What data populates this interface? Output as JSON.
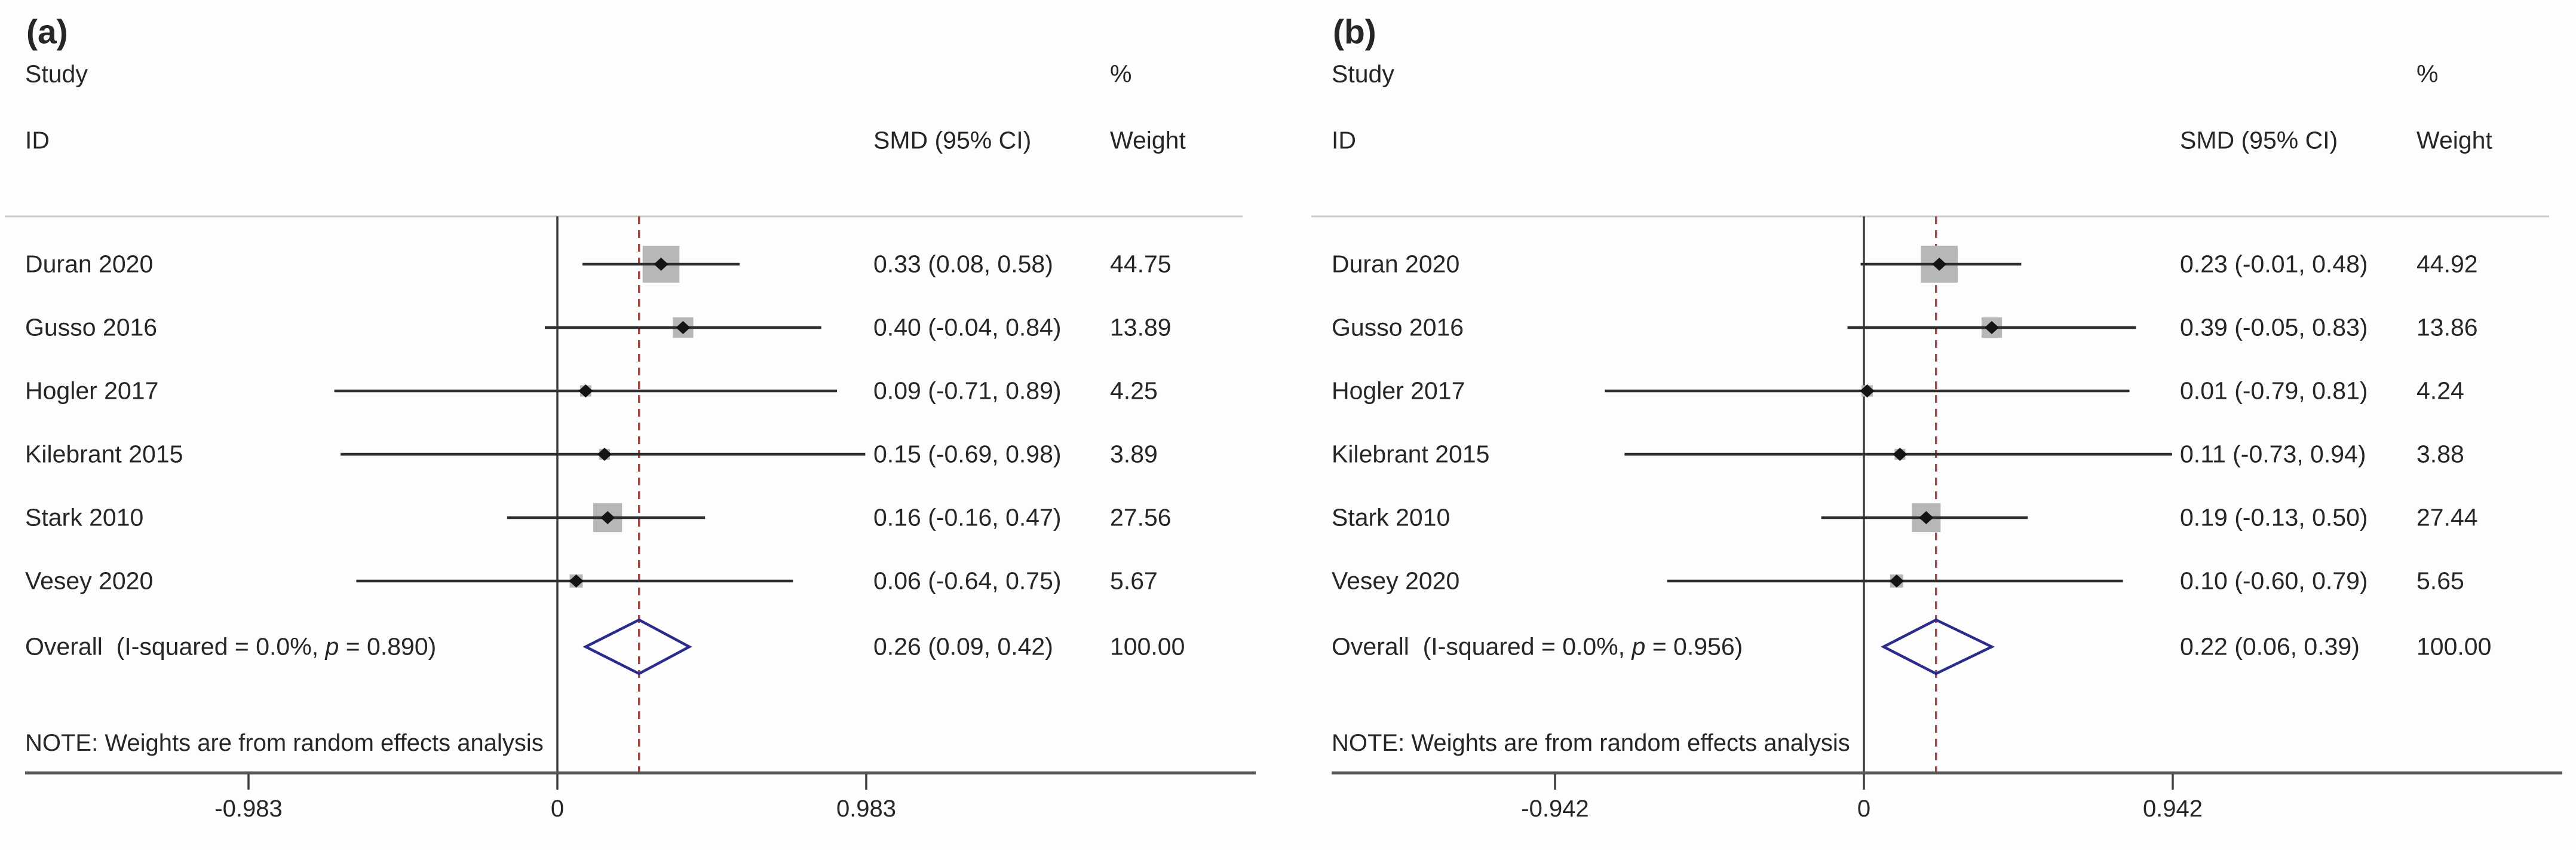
{
  "colors": {
    "background": "#fdfdfd",
    "text": "#262626",
    "ci_line": "#2e2e2e",
    "weight_square": "#b7b7b7",
    "point_marker": "#141414",
    "overall_diamond_outline": "#2b2b8c",
    "overall_effect_dashed_line": "#9e4a4a",
    "zero_line": "#3d3d3d",
    "axis_line": "#585858",
    "header_separator": "#cccccc"
  },
  "chart_data": [
    {
      "type": "forest",
      "panel_label": "(a)",
      "columns": {
        "study": "Study",
        "id": "ID",
        "smd": "SMD (95% CI)",
        "percent": "%",
        "weight": "Weight"
      },
      "studies": [
        {
          "id": "Duran 2020",
          "smd": 0.33,
          "ci": [
            0.08,
            0.58
          ],
          "label": "0.33 (0.08, 0.58)",
          "weight": 44.75,
          "weight_label": "44.75"
        },
        {
          "id": "Gusso 2016",
          "smd": 0.4,
          "ci": [
            -0.04,
            0.84
          ],
          "label": "0.40 (-0.04, 0.84)",
          "weight": 13.89,
          "weight_label": "13.89"
        },
        {
          "id": "Hogler 2017",
          "smd": 0.09,
          "ci": [
            -0.71,
            0.89
          ],
          "label": "0.09 (-0.71, 0.89)",
          "weight": 4.25,
          "weight_label": "4.25"
        },
        {
          "id": "Kilebrant 2015",
          "smd": 0.15,
          "ci": [
            -0.69,
            0.98
          ],
          "label": "0.15 (-0.69, 0.98)",
          "weight": 3.89,
          "weight_label": "3.89"
        },
        {
          "id": "Stark 2010",
          "smd": 0.16,
          "ci": [
            -0.16,
            0.47
          ],
          "label": "0.16 (-0.16, 0.47)",
          "weight": 27.56,
          "weight_label": "27.56"
        },
        {
          "id": "Vesey 2020",
          "smd": 0.06,
          "ci": [
            -0.64,
            0.75
          ],
          "label": "0.06 (-0.64, 0.75)",
          "weight": 5.67,
          "weight_label": "5.67"
        }
      ],
      "overall": {
        "id_parts": [
          "Overall  (I-squared = 0.0%, ",
          "p",
          " = 0.890)"
        ],
        "smd": 0.26,
        "ci": [
          0.09,
          0.42
        ],
        "label": "0.26 (0.09, 0.42)",
        "weight": 100.0,
        "weight_label": "100.00"
      },
      "note": "NOTE: Weights are from random effects analysis",
      "x_axis": {
        "ticks": [
          -0.983,
          0,
          0.983
        ],
        "tick_labels": [
          "-0.983",
          "0",
          "0.983"
        ]
      }
    },
    {
      "type": "forest",
      "panel_label": "(b)",
      "columns": {
        "study": "Study",
        "id": "ID",
        "smd": "SMD (95% CI)",
        "percent": "%",
        "weight": "Weight"
      },
      "studies": [
        {
          "id": "Duran 2020",
          "smd": 0.23,
          "ci": [
            -0.01,
            0.48
          ],
          "label": "0.23 (-0.01, 0.48)",
          "weight": 44.92,
          "weight_label": "44.92"
        },
        {
          "id": "Gusso 2016",
          "smd": 0.39,
          "ci": [
            -0.05,
            0.83
          ],
          "label": "0.39 (-0.05, 0.83)",
          "weight": 13.86,
          "weight_label": "13.86"
        },
        {
          "id": "Hogler 2017",
          "smd": 0.01,
          "ci": [
            -0.79,
            0.81
          ],
          "label": "0.01 (-0.79, 0.81)",
          "weight": 4.24,
          "weight_label": "4.24"
        },
        {
          "id": "Kilebrant 2015",
          "smd": 0.11,
          "ci": [
            -0.73,
            0.94
          ],
          "label": "0.11 (-0.73, 0.94)",
          "weight": 3.88,
          "weight_label": "3.88"
        },
        {
          "id": "Stark 2010",
          "smd": 0.19,
          "ci": [
            -0.13,
            0.5
          ],
          "label": "0.19 (-0.13, 0.50)",
          "weight": 27.44,
          "weight_label": "27.44"
        },
        {
          "id": "Vesey 2020",
          "smd": 0.1,
          "ci": [
            -0.6,
            0.79
          ],
          "label": "0.10 (-0.60, 0.79)",
          "weight": 5.65,
          "weight_label": "5.65"
        }
      ],
      "overall": {
        "id_parts": [
          "Overall  (I-squared = 0.0%, ",
          "p",
          " = 0.956)"
        ],
        "smd": 0.22,
        "ci": [
          0.06,
          0.39
        ],
        "label": "0.22 (0.06, 0.39)",
        "weight": 100.0,
        "weight_label": "100.00"
      },
      "note": "NOTE: Weights are from random effects analysis",
      "x_axis": {
        "ticks": [
          -0.942,
          0,
          0.942
        ],
        "tick_labels": [
          "-0.942",
          "0",
          "0.942"
        ]
      }
    }
  ]
}
